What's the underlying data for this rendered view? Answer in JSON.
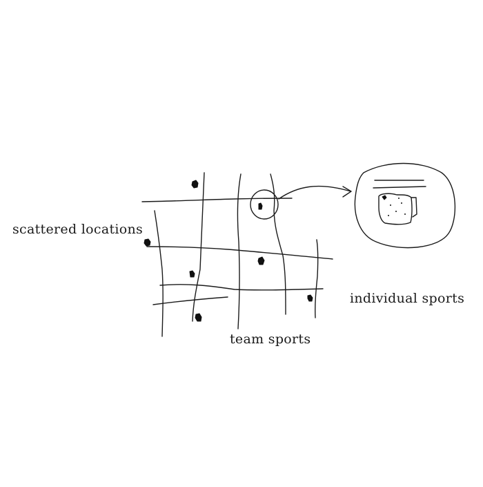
{
  "diagram": {
    "labels": {
      "scattered": "scattered locations",
      "team": "team sports",
      "individual": "individual sports"
    },
    "icons": {
      "arrow": "arrow-right-icon",
      "magnifier": "zoom-circle-icon"
    }
  }
}
